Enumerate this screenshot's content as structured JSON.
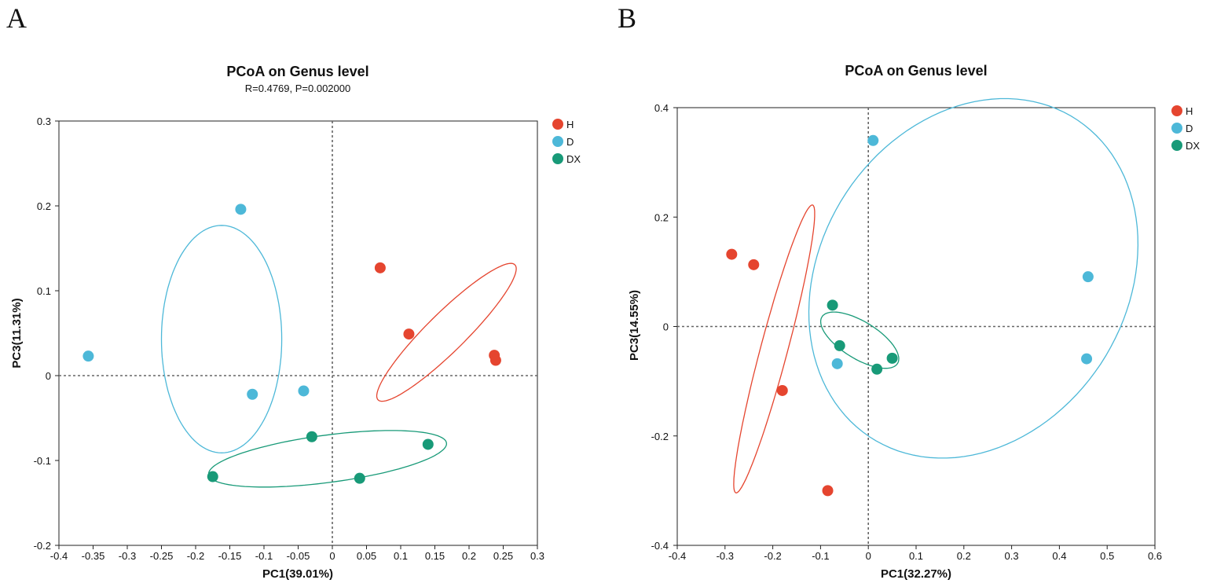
{
  "panels": {
    "a": {
      "letter": "A"
    },
    "b": {
      "letter": "B"
    }
  },
  "chart_data": [
    {
      "type": "scatter",
      "panel": "A",
      "title": "PCoA on Genus level",
      "subtitle": "R=0.4769, P=0.002000",
      "xlabel": "PC1(39.01%)",
      "ylabel": "PC3(11.31%)",
      "xlim": [
        -0.4,
        0.3
      ],
      "ylim": [
        -0.2,
        0.3
      ],
      "xticks": [
        -0.4,
        -0.35,
        -0.3,
        -0.25,
        -0.2,
        -0.15,
        -0.1,
        -0.05,
        0,
        0.05,
        0.1,
        0.15,
        0.2,
        0.25,
        0.3
      ],
      "xtick_labels": [
        "-0.4",
        "-0.35",
        "-0.3",
        "-0.25",
        "-0.2",
        "-0.15",
        "-0.1",
        "-0.05",
        "0",
        "0.05",
        "0.1",
        "0.15",
        "0.2",
        "0.25",
        "0.3"
      ],
      "yticks": [
        -0.2,
        -0.1,
        0,
        0.1,
        0.2,
        0.3
      ],
      "ytick_labels": [
        "-0.2",
        "-0.1",
        "0",
        "0.1",
        "0.2",
        "0.3"
      ],
      "legend_position": "top-right",
      "series": [
        {
          "name": "H",
          "color": "#e5452f",
          "points": [
            [
              0.07,
              0.127
            ],
            [
              0.112,
              0.049
            ],
            [
              0.237,
              0.024
            ],
            [
              0.239,
              0.018
            ]
          ],
          "ellipse": {
            "cx": 0.167,
            "cy": 0.051,
            "rx": 0.128,
            "ry": 0.025,
            "angle_deg": 38
          }
        },
        {
          "name": "D",
          "color": "#4db8d8",
          "points": [
            [
              -0.134,
              0.196
            ],
            [
              -0.357,
              0.023
            ],
            [
              -0.117,
              -0.022
            ],
            [
              -0.042,
              -0.018
            ]
          ],
          "ellipse": {
            "cx": -0.162,
            "cy": 0.043,
            "rx": 0.088,
            "ry": 0.134,
            "angle_deg": 0
          }
        },
        {
          "name": "DX",
          "color": "#189a78",
          "points": [
            [
              -0.175,
              -0.119
            ],
            [
              -0.03,
              -0.072
            ],
            [
              0.14,
              -0.081
            ],
            [
              0.04,
              -0.121
            ]
          ],
          "ellipse": {
            "cx": -0.007,
            "cy": -0.098,
            "rx": 0.175,
            "ry": 0.028,
            "angle_deg": 6
          }
        }
      ]
    },
    {
      "type": "scatter",
      "panel": "B",
      "title": "PCoA on Genus level",
      "xlabel": "PC1(32.27%)",
      "ylabel": "PC3(14.55%)",
      "xlim": [
        -0.4,
        0.6
      ],
      "ylim": [
        -0.4,
        0.4
      ],
      "xticks": [
        -0.4,
        -0.3,
        -0.2,
        -0.1,
        0,
        0.1,
        0.2,
        0.3,
        0.4,
        0.5,
        0.6
      ],
      "xtick_labels": [
        "-0.4",
        "-0.3",
        "-0.2",
        "-0.1",
        "0",
        "0.1",
        "0.2",
        "0.3",
        "0.4",
        "0.5",
        "0.6"
      ],
      "yticks": [
        -0.4,
        -0.2,
        0,
        0.2,
        0.4
      ],
      "ytick_labels": [
        "-0.4",
        "-0.2",
        "0",
        "0.2",
        "0.4"
      ],
      "legend_position": "top-right",
      "series": [
        {
          "name": "H",
          "color": "#e5452f",
          "points": [
            [
              -0.286,
              0.132
            ],
            [
              -0.24,
              0.113
            ],
            [
              -0.18,
              -0.117
            ],
            [
              -0.085,
              -0.3
            ]
          ],
          "ellipse": {
            "cx": -0.197,
            "cy": -0.041,
            "rx": 0.275,
            "ry": 0.028,
            "angle_deg": 73
          }
        },
        {
          "name": "D",
          "color": "#4db8d8",
          "points": [
            [
              0.01,
              0.34
            ],
            [
              -0.065,
              -0.068
            ],
            [
              0.46,
              0.091
            ],
            [
              0.457,
              -0.059
            ]
          ],
          "ellipse": {
            "cx": 0.22,
            "cy": 0.088,
            "rx": 0.368,
            "ry": 0.302,
            "angle_deg": 38
          }
        },
        {
          "name": "DX",
          "color": "#189a78",
          "points": [
            [
              -0.075,
              0.039
            ],
            [
              -0.06,
              -0.035
            ],
            [
              0.05,
              -0.058
            ],
            [
              0.018,
              -0.078
            ]
          ],
          "ellipse": {
            "cx": -0.018,
            "cy": -0.025,
            "rx": 0.09,
            "ry": 0.035,
            "angle_deg": -27
          }
        }
      ]
    }
  ]
}
